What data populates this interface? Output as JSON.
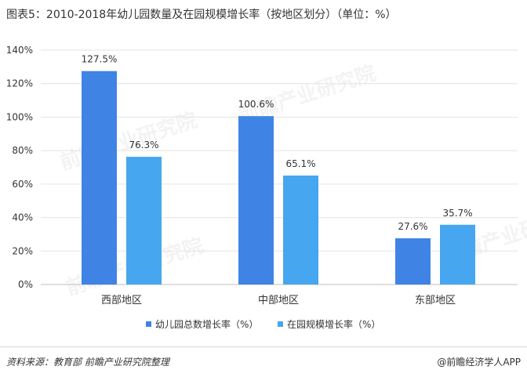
{
  "title": "图表5：2010-2018年幼儿园数量及在园规模增长率（按地区划分）（单位：%）",
  "chart_data": {
    "type": "bar",
    "categories": [
      "西部地区",
      "中部地区",
      "东部地区"
    ],
    "series": [
      {
        "name": "幼儿园总数增长率（%）",
        "values": [
          127.5,
          100.6,
          27.6
        ],
        "color": "#3f84e5"
      },
      {
        "name": "在园规模增长率（%）",
        "values": [
          76.3,
          65.1,
          35.7
        ],
        "color": "#46a6ef"
      }
    ],
    "data_labels": [
      [
        "127.5%",
        "100.6%",
        "27.6%"
      ],
      [
        "76.3%",
        "65.1%",
        "35.7%"
      ]
    ],
    "ylim": [
      0,
      140
    ],
    "yticks": [
      0,
      20,
      40,
      60,
      80,
      100,
      120,
      140
    ],
    "ytick_labels": [
      "0%",
      "20%",
      "40%",
      "60%",
      "80%",
      "100%",
      "120%",
      "140%"
    ],
    "grid": true,
    "legend_position": "bottom"
  },
  "watermark": "前瞻产业研究院",
  "footer": {
    "source": "资料来源：教育部 前瞻产业研究院整理",
    "brand": "@前瞻经济学人APP"
  }
}
